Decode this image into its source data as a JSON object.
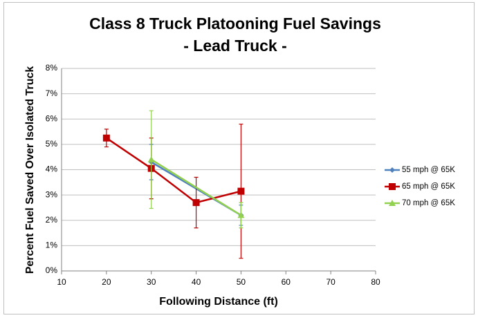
{
  "chart_data": {
    "type": "line",
    "title": "Class 8 Truck Platooning Fuel Savings",
    "subtitle": "- Lead Truck -",
    "x_label": "Following Distance (ft)",
    "y_label": "Percent Fuel Saved Over Isolated Truck",
    "xlim": [
      10,
      80
    ],
    "xticks": [
      10,
      20,
      30,
      40,
      50,
      60,
      70,
      80
    ],
    "ylim": [
      0,
      8
    ],
    "yticks": [
      {
        "value": 0,
        "label": "0%"
      },
      {
        "value": 1,
        "label": "1%"
      },
      {
        "value": 2,
        "label": "2%"
      },
      {
        "value": 3,
        "label": "3%"
      },
      {
        "value": 4,
        "label": "4%"
      },
      {
        "value": 5,
        "label": "5%"
      },
      {
        "value": 6,
        "label": "6%"
      },
      {
        "value": 7,
        "label": "7%"
      },
      {
        "value": 8,
        "label": "8%"
      }
    ],
    "grid": true,
    "legend": "right",
    "series": [
      {
        "name": "55 mph @ 65K",
        "color": "#4f81bd",
        "marker": "diamond",
        "x": [
          30,
          50
        ],
        "values": [
          4.3,
          2.2
        ],
        "errors": [
          0.7,
          0.4
        ]
      },
      {
        "name": "65 mph @ 65K",
        "color": "#c00000",
        "marker": "square",
        "x": [
          20,
          30,
          40,
          50
        ],
        "values": [
          5.25,
          4.05,
          2.7,
          3.15
        ],
        "errors": [
          0.35,
          1.2,
          1.0,
          2.65
        ]
      },
      {
        "name": "70 mph @ 65K",
        "color": "#92d050",
        "marker": "triangle",
        "x": [
          30,
          50
        ],
        "values": [
          4.4,
          2.2
        ],
        "errors": [
          1.93,
          0.5
        ]
      }
    ]
  }
}
